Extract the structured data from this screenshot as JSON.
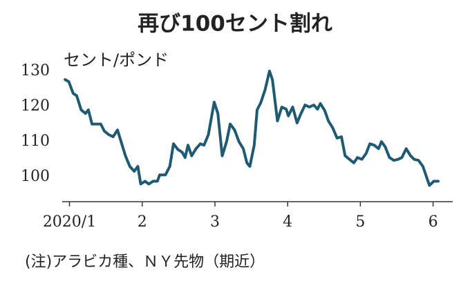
{
  "chart_data": {
    "type": "line",
    "title": "再び100セント割れ",
    "y_unit": "セント/ポンド",
    "note": "(注)アラビカ種、ＮＹ先物（期近）",
    "x": [
      0.94,
      0.99,
      1.05,
      1.1,
      1.16,
      1.22,
      1.26,
      1.31,
      1.37,
      1.43,
      1.48,
      1.54,
      1.6,
      1.66,
      1.71,
      1.77,
      1.83,
      1.89,
      1.94,
      1.98,
      2.04,
      2.09,
      2.15,
      2.21,
      2.24,
      2.32,
      2.38,
      2.43,
      2.49,
      2.55,
      2.59,
      2.63,
      2.68,
      2.74,
      2.8,
      2.85,
      2.91,
      2.99,
      3.04,
      3.1,
      3.16,
      3.21,
      3.27,
      3.33,
      3.39,
      3.44,
      3.48,
      3.54,
      3.58,
      3.63,
      3.69,
      3.75,
      3.79,
      3.82,
      3.86,
      3.92,
      3.98,
      4.01,
      4.07,
      4.13,
      4.18,
      4.24,
      4.3,
      4.36,
      4.41,
      4.45,
      4.51,
      4.56,
      4.62,
      4.68,
      4.74,
      4.79,
      4.85,
      4.91,
      4.96,
      5.02,
      5.08,
      5.13,
      5.19,
      5.25,
      5.29,
      5.34,
      5.4,
      5.46,
      5.52,
      5.57,
      5.63,
      5.69,
      5.74,
      5.8,
      5.86,
      5.91,
      5.95,
      6.01,
      6.07
    ],
    "series": [
      {
        "color": "#1f5a73",
        "values": [
          127.6,
          127,
          123.7,
          123,
          119,
          118,
          119,
          115,
          115,
          115,
          113,
          112,
          111.4,
          113.3,
          110,
          106,
          103,
          101.6,
          103,
          98,
          98.8,
          98,
          98.8,
          98.8,
          100.6,
          100.6,
          103,
          109.4,
          107.8,
          107,
          105.5,
          109,
          106,
          108,
          109.4,
          109,
          112,
          121.2,
          118,
          106,
          110,
          115,
          113.3,
          110,
          108,
          104,
          103,
          109,
          119,
          121,
          124.7,
          130,
          127.6,
          122.7,
          115.9,
          119.8,
          119.2,
          117.3,
          119.8,
          115.3,
          117.8,
          120.4,
          119.8,
          120.4,
          119.2,
          120.8,
          118.8,
          115.9,
          113.9,
          111,
          111.4,
          106,
          105,
          104,
          105.5,
          105,
          106.7,
          109.4,
          109,
          108,
          110,
          108.6,
          105.5,
          104.7,
          105,
          105.5,
          108,
          106,
          105,
          104.7,
          103,
          100,
          97.6,
          98.8,
          98.8
        ]
      }
    ],
    "xlim": [
      0.9,
      6.27
    ],
    "xticks": [
      {
        "value": 1,
        "label": "2020/1"
      },
      2,
      3,
      4,
      5,
      6
    ],
    "ylim": [
      93,
      133.5
    ],
    "yticks": [
      100,
      110,
      120,
      130
    ],
    "grid": false
  }
}
